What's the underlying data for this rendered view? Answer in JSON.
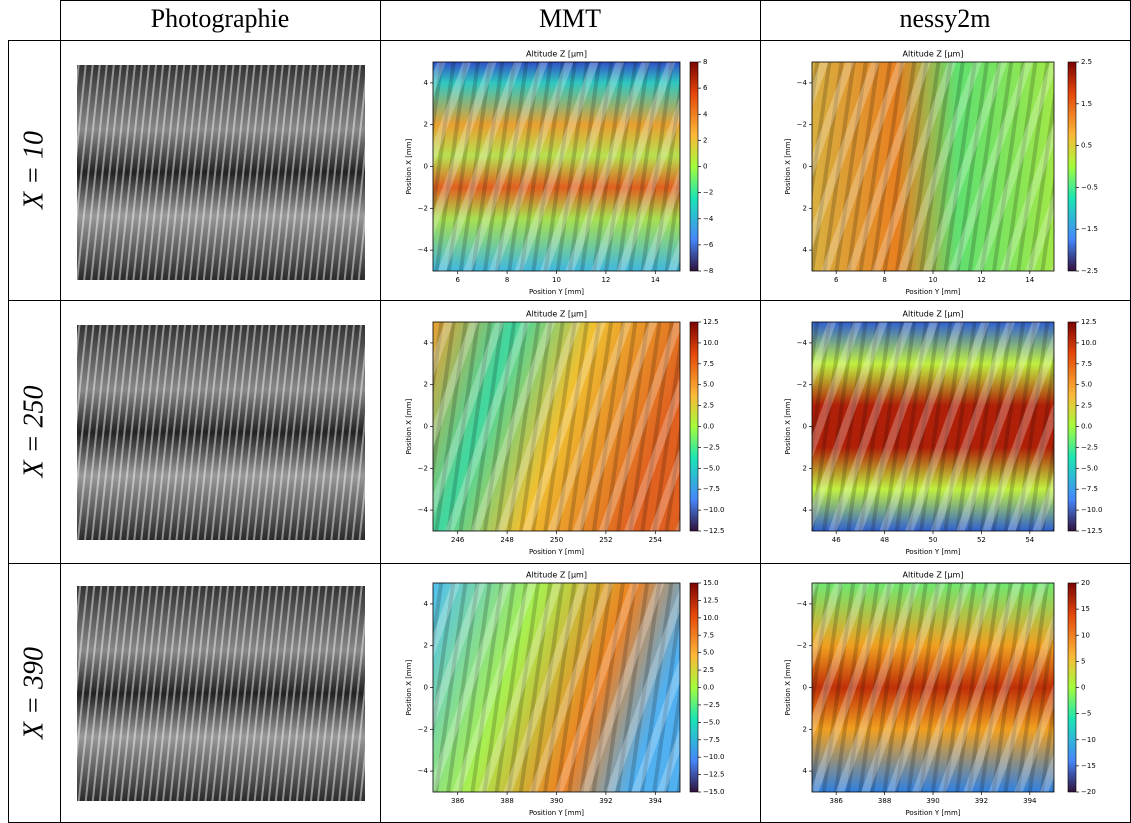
{
  "header": {
    "columns": [
      "Photographie",
      "MMT",
      "nessy2m"
    ]
  },
  "rows": [
    {
      "label": "X = 10",
      "mmt": {
        "title": "Altitude Z [µm]",
        "xlabel": "Position Y [mm]",
        "ylabel": "Position X [mm]",
        "xlim": [
          5,
          15
        ],
        "xticks": [
          6,
          8,
          10,
          12,
          14
        ],
        "ylim": [
          -5,
          5
        ],
        "yticks": [
          4,
          2,
          0,
          {
            "value": -2,
            "label": "−2"
          },
          {
            "value": -4,
            "label": "−4"
          }
        ],
        "invert_y": false,
        "clim": [
          -8,
          8
        ],
        "cticks": [
          8,
          6,
          4,
          2,
          0,
          {
            "value": -2,
            "label": "−2"
          },
          {
            "value": -4,
            "label": "−4"
          },
          {
            "value": -6,
            "label": "−6"
          },
          {
            "value": -8,
            "label": "−8"
          }
        ]
      },
      "nessy": {
        "title": "Altitude Z [µm]",
        "xlabel": "Position Y [mm]",
        "ylabel": "Position X [mm]",
        "xlim": [
          5,
          15
        ],
        "xticks": [
          6,
          8,
          10,
          12,
          14
        ],
        "ylim": [
          -5,
          5
        ],
        "yticks": [
          {
            "value": -4,
            "label": "−4"
          },
          {
            "value": -2,
            "label": "−2"
          },
          0,
          2,
          4
        ],
        "invert_y": true,
        "clim": [
          -2.5,
          2.5
        ],
        "cticks": [
          2.5,
          1.5,
          0.5,
          {
            "value": -0.5,
            "label": "−0.5"
          },
          {
            "value": -1.5,
            "label": "−1.5"
          },
          {
            "value": -2.5,
            "label": "−2.5"
          }
        ]
      }
    },
    {
      "label": "X = 250",
      "mmt": {
        "title": "Altitude Z [µm]",
        "xlabel": "Position Y [mm]",
        "ylabel": "Position X [mm]",
        "xlim": [
          245,
          255
        ],
        "xticks": [
          246,
          248,
          250,
          252,
          254
        ],
        "ylim": [
          -5,
          5
        ],
        "yticks": [
          4,
          2,
          0,
          {
            "value": -2,
            "label": "−2"
          },
          {
            "value": -4,
            "label": "−4"
          }
        ],
        "invert_y": false,
        "clim": [
          -12.5,
          12.5
        ],
        "cticks": [
          12.5,
          {
            "value": 10,
            "label": "10.0"
          },
          7.5,
          {
            "value": 5,
            "label": "5.0"
          },
          2.5,
          {
            "value": 0,
            "label": "0.0"
          },
          {
            "value": -2.5,
            "label": "−2.5"
          },
          {
            "value": -5,
            "label": "−5.0"
          },
          {
            "value": -7.5,
            "label": "−7.5"
          },
          {
            "value": -10,
            "label": "−10.0"
          },
          {
            "value": -12.5,
            "label": "−12.5"
          }
        ]
      },
      "nessy": {
        "title": "Altitude Z [µm]",
        "xlabel": "Position Y [mm]",
        "ylabel": "Position X [mm]",
        "xlim": [
          45,
          55
        ],
        "xticks": [
          46,
          48,
          50,
          52,
          54
        ],
        "ylim": [
          -5,
          5
        ],
        "yticks": [
          {
            "value": -4,
            "label": "−4"
          },
          {
            "value": -2,
            "label": "−2"
          },
          0,
          2,
          4
        ],
        "invert_y": true,
        "clim": [
          -12.5,
          12.5
        ],
        "cticks": [
          12.5,
          {
            "value": 10,
            "label": "10.0"
          },
          7.5,
          {
            "value": 5,
            "label": "5.0"
          },
          2.5,
          {
            "value": 0,
            "label": "0.0"
          },
          {
            "value": -2.5,
            "label": "−2.5"
          },
          {
            "value": -5,
            "label": "−5.0"
          },
          {
            "value": -7.5,
            "label": "−7.5"
          },
          {
            "value": -10,
            "label": "−10.0"
          },
          {
            "value": -12.5,
            "label": "−12.5"
          }
        ]
      }
    },
    {
      "label": "X = 390",
      "mmt": {
        "title": "Altitude Z [µm]",
        "xlabel": "Position Y [mm]",
        "ylabel": "Position X [mm]",
        "xlim": [
          385,
          395
        ],
        "xticks": [
          386,
          388,
          390,
          392,
          394
        ],
        "ylim": [
          -5,
          5
        ],
        "yticks": [
          4,
          2,
          0,
          {
            "value": -2,
            "label": "−2"
          },
          {
            "value": -4,
            "label": "−4"
          }
        ],
        "invert_y": false,
        "clim": [
          -15,
          15
        ],
        "cticks": [
          {
            "value": 15,
            "label": "15.0"
          },
          12.5,
          {
            "value": 10,
            "label": "10.0"
          },
          7.5,
          {
            "value": 5,
            "label": "5.0"
          },
          2.5,
          {
            "value": 0,
            "label": "0.0"
          },
          {
            "value": -2.5,
            "label": "−2.5"
          },
          {
            "value": -5,
            "label": "−5.0"
          },
          {
            "value": -7.5,
            "label": "−7.5"
          },
          {
            "value": -10,
            "label": "−10.0"
          },
          {
            "value": -12.5,
            "label": "−12.5"
          },
          {
            "value": -15,
            "label": "−15.0"
          }
        ]
      },
      "nessy": {
        "title": "Altitude Z [µm]",
        "xlabel": "Position Y [mm]",
        "ylabel": "Position X [mm]",
        "xlim": [
          385,
          395
        ],
        "xticks": [
          386,
          388,
          390,
          392,
          394
        ],
        "ylim": [
          -5,
          5
        ],
        "yticks": [
          {
            "value": -4,
            "label": "−4"
          },
          {
            "value": -2,
            "label": "−2"
          },
          0,
          2,
          4
        ],
        "invert_y": true,
        "clim": [
          -20,
          20
        ],
        "cticks": [
          20,
          15,
          10,
          5,
          0,
          {
            "value": -5,
            "label": "−5"
          },
          {
            "value": -10,
            "label": "−10"
          },
          {
            "value": -15,
            "label": "−15"
          },
          {
            "value": -20,
            "label": "−20"
          }
        ]
      }
    }
  ]
}
